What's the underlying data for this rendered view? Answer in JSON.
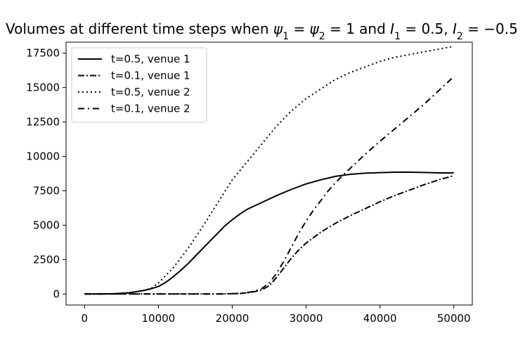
{
  "chart_data": {
    "type": "line",
    "title": "Volumes at different time steps when ψ₁ = ψ₂ = 1 and I₁ = 0.5, I₂ = −0.5",
    "xlabel": "",
    "ylabel": "",
    "xlim": [
      -2500,
      52500
    ],
    "ylim": [
      -800,
      18300
    ],
    "x_ticks": [
      0,
      10000,
      20000,
      30000,
      40000,
      50000
    ],
    "y_ticks": [
      0,
      2500,
      5000,
      7500,
      10000,
      12500,
      15000,
      17500
    ],
    "grid": false,
    "legend_position": "top-left",
    "series": [
      {
        "name": "t=0.5, venue 1",
        "line_style": "solid",
        "color": "#000000",
        "x": [
          0,
          2000,
          4000,
          6000,
          8000,
          9000,
          10000,
          11000,
          12000,
          13000,
          14000,
          15000,
          16000,
          17000,
          18000,
          19000,
          20000,
          21000,
          22000,
          24000,
          26000,
          28000,
          30000,
          32000,
          34000,
          36000,
          38000,
          40000,
          42000,
          43000,
          44000,
          46000,
          48000,
          50000
        ],
        "y": [
          0,
          0,
          20,
          90,
          250,
          380,
          550,
          850,
          1250,
          1700,
          2200,
          2750,
          3300,
          3850,
          4400,
          4950,
          5400,
          5800,
          6150,
          6650,
          7150,
          7600,
          8000,
          8300,
          8550,
          8700,
          8780,
          8820,
          8850,
          8850,
          8850,
          8830,
          8800,
          8800
        ]
      },
      {
        "name": "t=0.1, venue 1",
        "line_style": "dashdot",
        "color": "#000000",
        "x": [
          0,
          5000,
          10000,
          15000,
          18000,
          20000,
          21000,
          22000,
          23000,
          24000,
          25000,
          26000,
          27000,
          28000,
          29000,
          30000,
          32000,
          34000,
          36000,
          38000,
          40000,
          42000,
          44000,
          46000,
          48000,
          50000
        ],
        "y": [
          0,
          0,
          0,
          0,
          0,
          20,
          40,
          90,
          170,
          300,
          600,
          1200,
          1900,
          2600,
          3200,
          3700,
          4500,
          5150,
          5700,
          6200,
          6700,
          7150,
          7550,
          7950,
          8300,
          8600
        ]
      },
      {
        "name": "t=0.5, venue 2",
        "line_style": "dotted",
        "color": "#000000",
        "x": [
          0,
          2000,
          4000,
          6000,
          8000,
          9000,
          10000,
          12000,
          14000,
          16000,
          18000,
          20000,
          22000,
          24000,
          26000,
          28000,
          30000,
          32000,
          34000,
          36000,
          38000,
          40000,
          42000,
          44000,
          46000,
          48000,
          50000
        ],
        "y": [
          0,
          0,
          20,
          90,
          250,
          400,
          800,
          1900,
          3300,
          4900,
          6600,
          8300,
          9600,
          10900,
          12200,
          13300,
          14200,
          14900,
          15600,
          16100,
          16500,
          16900,
          17200,
          17400,
          17600,
          17800,
          18000
        ]
      },
      {
        "name": "t=0.1, venue 2",
        "line_style": "loosely-dashdot",
        "color": "#000000",
        "x": [
          0,
          5000,
          10000,
          15000,
          18000,
          20000,
          21000,
          22000,
          23000,
          24000,
          25000,
          26000,
          27000,
          28000,
          29000,
          30000,
          31000,
          32000,
          33000,
          34000,
          35000,
          36000,
          38000,
          40000,
          42000,
          44000,
          46000,
          48000,
          50000
        ],
        "y": [
          0,
          0,
          0,
          0,
          0,
          20,
          50,
          100,
          200,
          400,
          800,
          1500,
          2400,
          3400,
          4400,
          5300,
          6100,
          6800,
          7500,
          8100,
          8650,
          9150,
          10150,
          11100,
          12000,
          12900,
          13800,
          14800,
          15800
        ]
      }
    ]
  }
}
